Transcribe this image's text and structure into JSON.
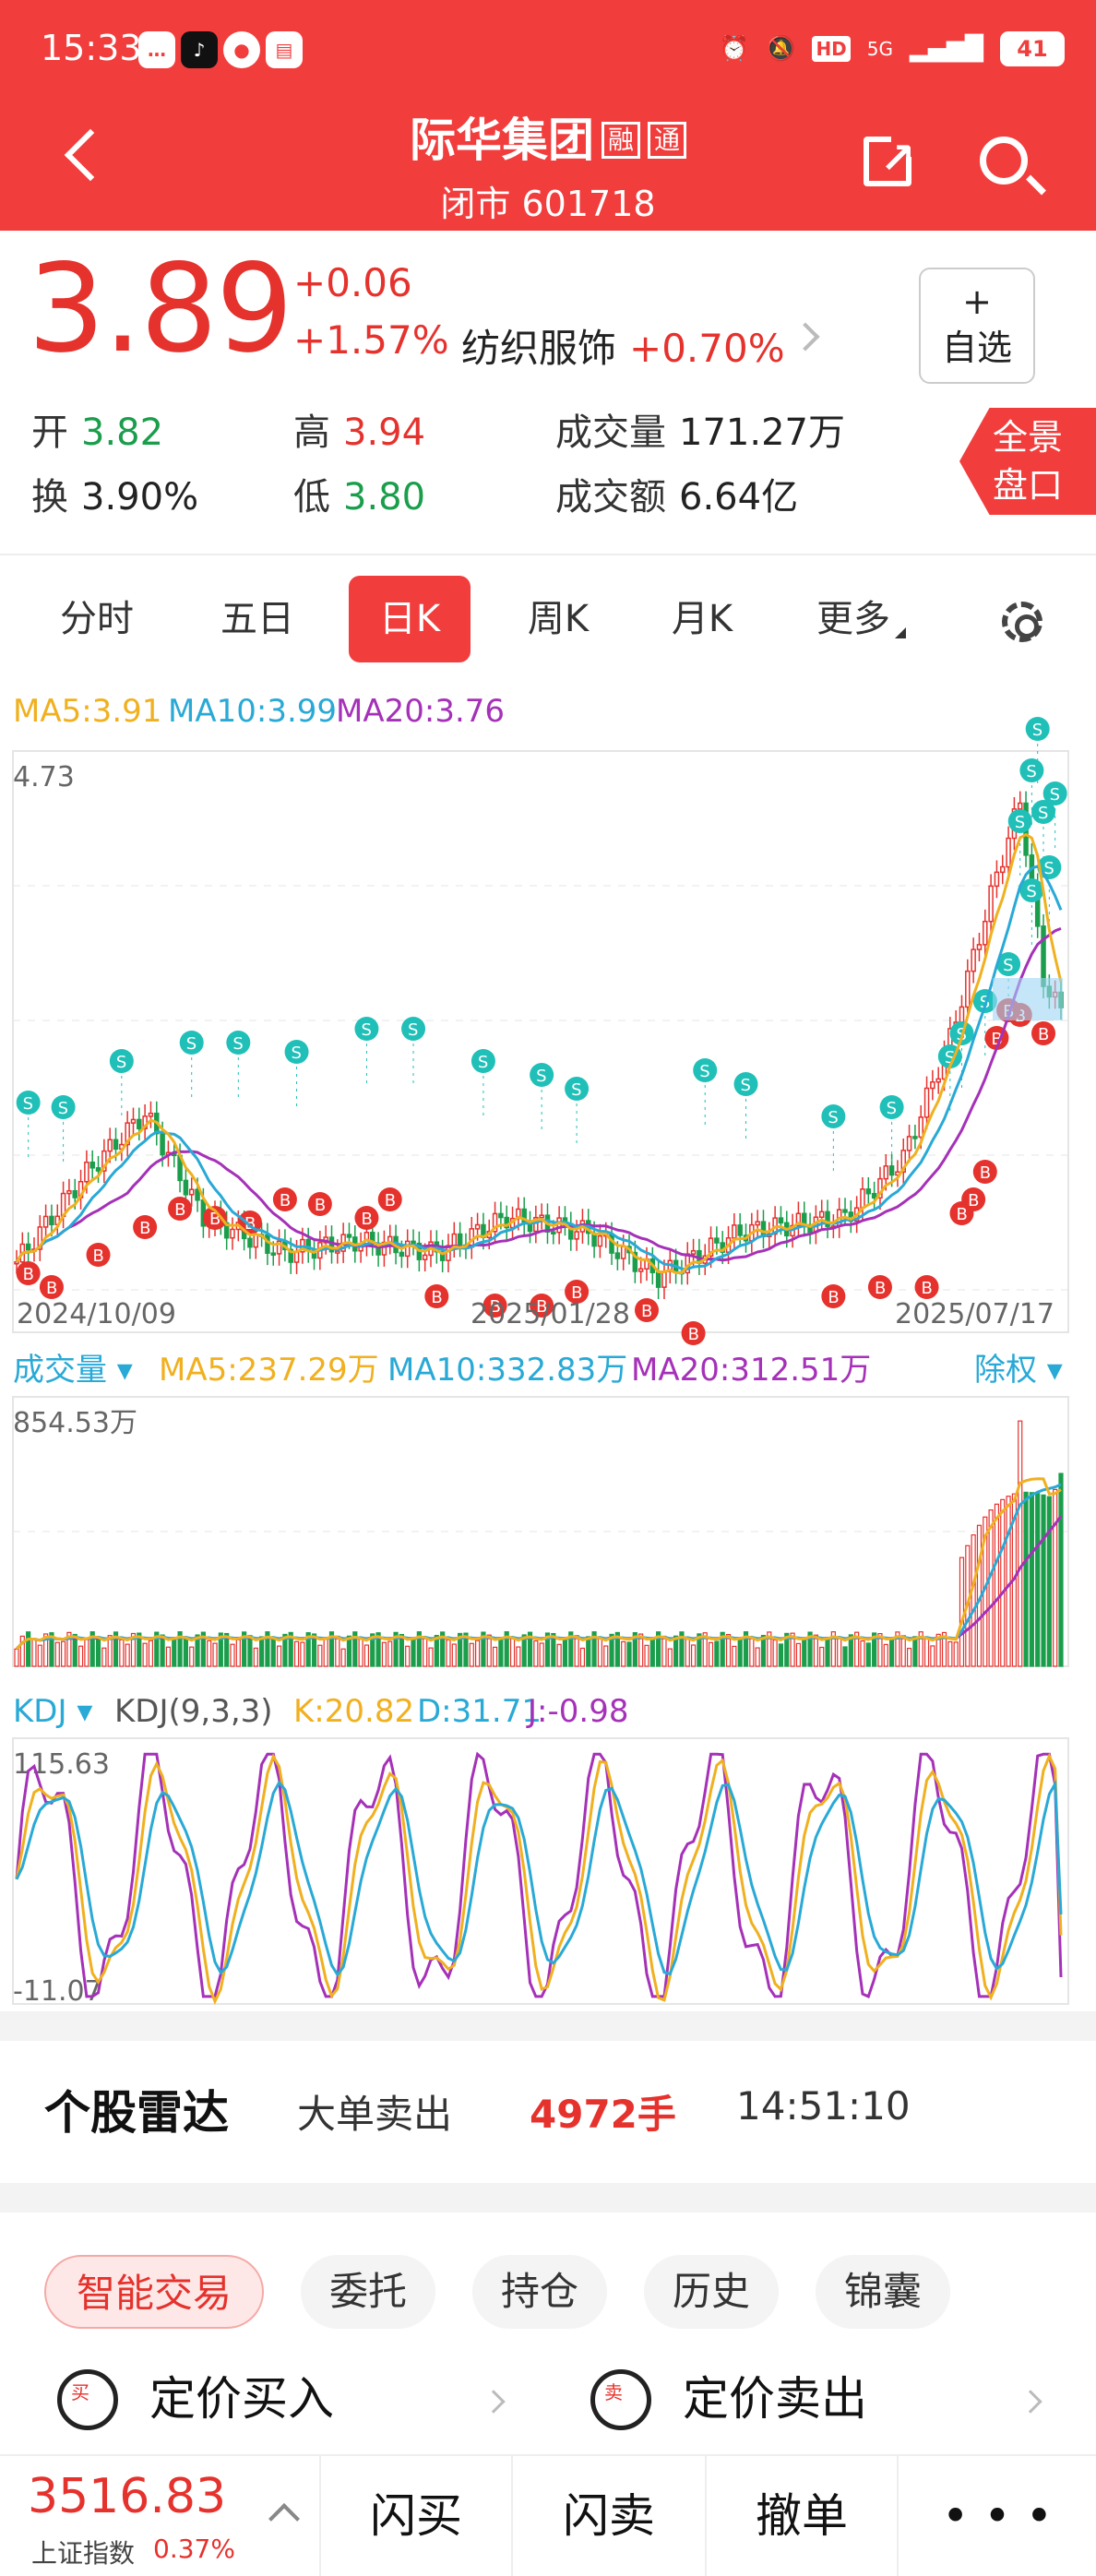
{
  "status_bar": {
    "time": "15:33",
    "app_icons": [
      "message-app-icon",
      "tiktok-icon",
      "photo-app-icon",
      "clipboard-app-icon"
    ],
    "network": "5G",
    "hd": "HD",
    "battery": "41"
  },
  "header": {
    "stock_name": "际华集团",
    "tags": [
      "融",
      "通"
    ],
    "subtitle": "闭市 601718"
  },
  "quote": {
    "price": "3.89",
    "change": "+0.06",
    "change_pct": "+1.57%",
    "industry": "纺织服饰",
    "industry_pct": "+0.70%",
    "fav_plus": "+",
    "fav_label": "自选",
    "stats": [
      {
        "label": "开",
        "value": "3.82",
        "color": "green"
      },
      {
        "label": "高",
        "value": "3.94",
        "color": "red"
      },
      {
        "label": "成交量",
        "value": "171.27万",
        "color": "none"
      },
      {
        "label": "换",
        "value": "3.90%",
        "color": "none"
      },
      {
        "label": "低",
        "value": "3.80",
        "color": "green"
      },
      {
        "label": "成交额",
        "value": "6.64亿",
        "color": "none"
      }
    ],
    "panorama": [
      "全景",
      "盘口"
    ]
  },
  "tabs": [
    "分时",
    "五日",
    "日K",
    "周K",
    "月K",
    "更多"
  ],
  "active_tab": "日K",
  "ma_legend": {
    "ma5": "MA5:3.91",
    "ma10": "MA10:3.99",
    "ma20": "MA20:3.76"
  },
  "price_axis": {
    "top": "4.73"
  },
  "dates": [
    "2024/10/09",
    "2025/01/28",
    "2025/07/17"
  ],
  "volume_legend": {
    "label": "成交量",
    "ma5": "MA5:237.29万",
    "ma10": "MA10:332.83万",
    "ma20": "MA20:312.51万",
    "right": "除权",
    "top": "854.53万"
  },
  "kdj_legend": {
    "label": "KDJ",
    "params": "KDJ(9,3,3)",
    "k": "K:20.82",
    "d": "D:31.71",
    "j": "J:-0.98",
    "top": "115.63",
    "bottom": "-11.07"
  },
  "colors": {
    "ma5": "#f0b01f",
    "ma10": "#29a9d6",
    "ma20": "#a531b8",
    "up": "#e5322d",
    "down": "#1a9e4c",
    "buy": "#e5322d",
    "sell": "#20c0b8"
  },
  "radar": {
    "title": "个股雷达",
    "type": "大单卖出",
    "amount": "4972手",
    "time": "14:51:10"
  },
  "trade_chips": [
    "智能交易",
    "委托",
    "持仓",
    "历史",
    "锦囊"
  ],
  "actions": [
    {
      "icon_char": "买",
      "label": "定价买入"
    },
    {
      "icon_char": "卖",
      "label": "定价卖出"
    }
  ],
  "bottom_bar": {
    "index_value": "3516.83",
    "index_name": "上证指数",
    "index_pct": "0.37%",
    "buttons": [
      "闪买",
      "闪卖",
      "撤单",
      "• • •"
    ]
  },
  "chart_data": {
    "type": "candlestick",
    "title": "",
    "x_labels": [
      "2024/10/09",
      "2025/01/28",
      "2025/07/17"
    ],
    "price_range": [
      2.95,
      4.73
    ],
    "ma_values": {
      "MA5": 3.91,
      "MA10": 3.99,
      "MA20": 3.76
    },
    "volume_range": [
      0,
      854.53
    ],
    "kdj_range": [
      -11.07,
      115.63
    ],
    "kdj_last": {
      "K": 20.82,
      "D": 31.71,
      "J": -0.98
    }
  }
}
